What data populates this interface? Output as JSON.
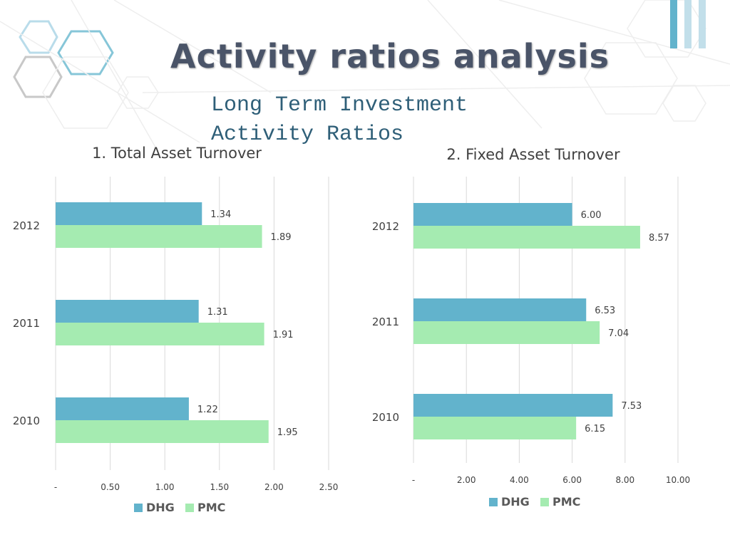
{
  "slide": {
    "title": "Activity ratios analysis",
    "subtitle": "Long Term Investment\nActivity Ratios"
  },
  "colors": {
    "dhg": "#62b3cc",
    "pmc": "#a5ebb1",
    "stripe_dark": "#62b3cc",
    "stripe_light": "#c2dfea"
  },
  "chart_data": [
    {
      "type": "bar",
      "orientation": "horizontal",
      "title": "1. Total Asset Turnover",
      "categories": [
        "2012",
        "2011",
        "2010"
      ],
      "series": [
        {
          "name": "DHG",
          "values": [
            1.34,
            1.31,
            1.22
          ]
        },
        {
          "name": "PMC",
          "values": [
            1.89,
            1.91,
            1.95
          ]
        }
      ],
      "value_labels": {
        "DHG": [
          "1.34",
          "1.31",
          "1.22"
        ],
        "PMC": [
          "1.89",
          "1.91",
          "1.95"
        ]
      },
      "xlim": [
        0,
        2.5
      ],
      "xticks": [
        "-",
        "0.50",
        "1.00",
        "1.50",
        "2.00",
        "2.50"
      ],
      "grid": true,
      "legend": "bottom"
    },
    {
      "type": "bar",
      "orientation": "horizontal",
      "title": "2. Fixed Asset Turnover",
      "categories": [
        "2012",
        "2011",
        "2010"
      ],
      "series": [
        {
          "name": "DHG",
          "values": [
            6.0,
            6.53,
            7.53
          ]
        },
        {
          "name": "PMC",
          "values": [
            8.57,
            7.04,
            6.15
          ]
        }
      ],
      "value_labels": {
        "DHG": [
          "6.00",
          "6.53",
          "7.53"
        ],
        "PMC": [
          "8.57",
          "7.04",
          "6.15"
        ]
      },
      "xlim": [
        0,
        10
      ],
      "xticks": [
        "-",
        "2.00",
        "4.00",
        "6.00",
        "8.00",
        "10.00"
      ],
      "grid": true,
      "legend": "bottom"
    }
  ]
}
